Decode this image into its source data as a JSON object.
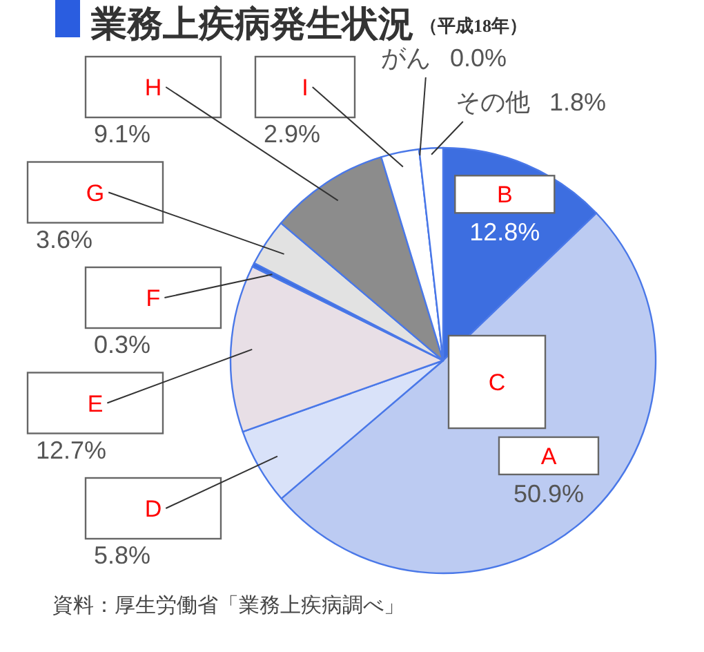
{
  "chart_data": {
    "type": "pie",
    "title": "業務上疾病発生状況",
    "subtitle": "（平成18年）",
    "categories": [
      "B",
      "A",
      "D",
      "E",
      "F",
      "G",
      "H",
      "I",
      "がん",
      "その他"
    ],
    "values": [
      12.8,
      50.9,
      5.8,
      12.7,
      0.3,
      3.6,
      9.1,
      2.9,
      0.0,
      1.8
    ],
    "colors": [
      "#3d6ee0",
      "#bccbf2",
      "#d9e2f9",
      "#e8dfe6",
      "#3d6ee0",
      "#e2e2e2",
      "#8c8c8c",
      "#ffffff",
      "#ffffff",
      "#ffffff"
    ],
    "value_labels": [
      "12.8%",
      "50.9%",
      "5.8%",
      "12.7%",
      "0.3%",
      "3.6%",
      "9.1%",
      "2.9%",
      "0.0%",
      "1.8%"
    ],
    "annotations": [
      "C",
      "資料：厚生労働省「業務上疾病調べ」"
    ]
  }
}
